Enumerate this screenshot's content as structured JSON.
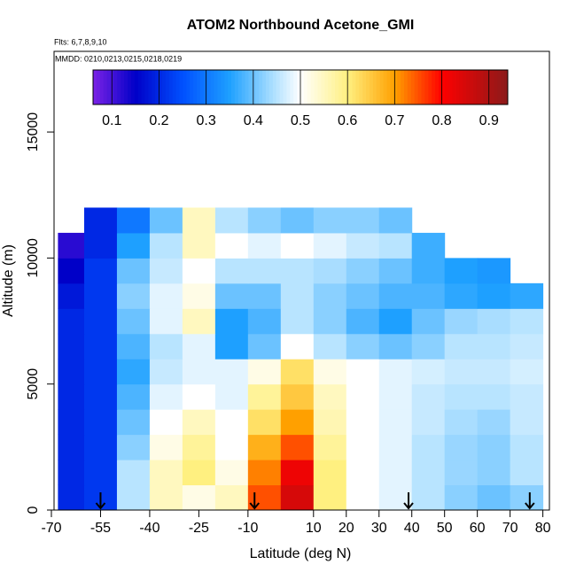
{
  "chart_data": {
    "type": "heatmap",
    "title": "ATOM2 Northbound Acetone_GMI",
    "subtitle": "Flts: 6,7,8,9,10",
    "annotation": "MMDD: 0210,0213,0215,0218,0219",
    "x_label": "Latitude (deg N)",
    "y_label": "Altitude (m)",
    "xlim": [
      -70,
      82
    ],
    "ylim": [
      0,
      18200
    ],
    "xticks": [
      -70,
      -55,
      -40,
      -25,
      -10,
      10,
      20,
      30,
      40,
      50,
      60,
      70,
      80
    ],
    "yticks": [
      0,
      5000,
      10000,
      15000
    ],
    "x_edges": [
      -68,
      -60,
      -50,
      -40,
      -30,
      -20,
      -10,
      0,
      10,
      20,
      30,
      40,
      50,
      60,
      70,
      80
    ],
    "y_edges": [
      0,
      1000,
      2000,
      3000,
      4000,
      5000,
      6000,
      7000,
      8000,
      9000,
      10000,
      11000,
      12000
    ],
    "z": [
      [
        0.2,
        0.22,
        0.45,
        0.55,
        0.52,
        0.55,
        0.75,
        0.85,
        0.6,
        0.5,
        0.48,
        0.45,
        0.42,
        0.4,
        0.42
      ],
      [
        0.2,
        0.22,
        0.45,
        0.55,
        0.6,
        0.52,
        0.72,
        0.82,
        0.6,
        0.5,
        0.48,
        0.45,
        0.43,
        0.42,
        0.45
      ],
      [
        0.2,
        0.22,
        0.42,
        0.52,
        0.58,
        0.5,
        0.68,
        0.75,
        0.58,
        0.5,
        0.48,
        0.45,
        0.43,
        0.42,
        0.45
      ],
      [
        0.2,
        0.22,
        0.4,
        0.5,
        0.55,
        0.5,
        0.62,
        0.7,
        0.56,
        0.5,
        0.48,
        0.46,
        0.44,
        0.43,
        0.46
      ],
      [
        0.2,
        0.22,
        0.38,
        0.48,
        0.5,
        0.48,
        0.58,
        0.65,
        0.55,
        0.5,
        0.48,
        0.46,
        0.45,
        0.45,
        0.46
      ],
      [
        0.2,
        0.22,
        0.36,
        0.46,
        0.48,
        0.48,
        0.52,
        0.62,
        0.52,
        0.5,
        0.48,
        0.47,
        0.46,
        0.46,
        0.47
      ],
      [
        0.2,
        0.22,
        0.38,
        0.45,
        0.48,
        0.35,
        0.4,
        0.5,
        0.45,
        0.42,
        0.4,
        0.42,
        0.45,
        0.45,
        0.46
      ],
      [
        0.2,
        0.22,
        0.4,
        0.48,
        0.55,
        0.35,
        0.38,
        0.45,
        0.42,
        0.38,
        0.35,
        0.4,
        0.43,
        0.44,
        0.45
      ],
      [
        0.18,
        0.22,
        0.42,
        0.48,
        0.52,
        0.4,
        0.4,
        0.45,
        0.42,
        0.4,
        0.38,
        0.38,
        0.36,
        0.35,
        0.36
      ],
      [
        0.15,
        0.22,
        0.4,
        0.46,
        0.5,
        0.45,
        0.45,
        0.45,
        0.44,
        0.42,
        0.4,
        0.37,
        0.35,
        0.34,
        null
      ],
      [
        0.12,
        0.2,
        0.35,
        0.45,
        0.55,
        0.5,
        0.48,
        0.5,
        0.48,
        0.46,
        0.45,
        0.37,
        null,
        null,
        null
      ],
      [
        null,
        0.2,
        0.3,
        0.4,
        0.55,
        0.45,
        0.42,
        0.4,
        0.42,
        0.42,
        0.4,
        null,
        null,
        null,
        null
      ]
    ],
    "zlim": [
      0.06,
      0.94
    ],
    "colorbar_ticks": [
      0.1,
      0.2,
      0.3,
      0.4,
      0.5,
      0.6,
      0.7,
      0.8,
      0.9
    ],
    "colormap": [
      {
        "value": 0.06,
        "color": "#7b22e6"
      },
      {
        "value": 0.15,
        "color": "#0000c8"
      },
      {
        "value": 0.25,
        "color": "#0050ff"
      },
      {
        "value": 0.35,
        "color": "#1ea0ff"
      },
      {
        "value": 0.45,
        "color": "#b8e4ff"
      },
      {
        "value": 0.5,
        "color": "#ffffff"
      },
      {
        "value": 0.6,
        "color": "#fff080"
      },
      {
        "value": 0.7,
        "color": "#ffa000"
      },
      {
        "value": 0.8,
        "color": "#ff0000"
      },
      {
        "value": 0.94,
        "color": "#8b1a1a"
      }
    ],
    "markers": [
      -55,
      -8,
      39,
      76
    ]
  }
}
